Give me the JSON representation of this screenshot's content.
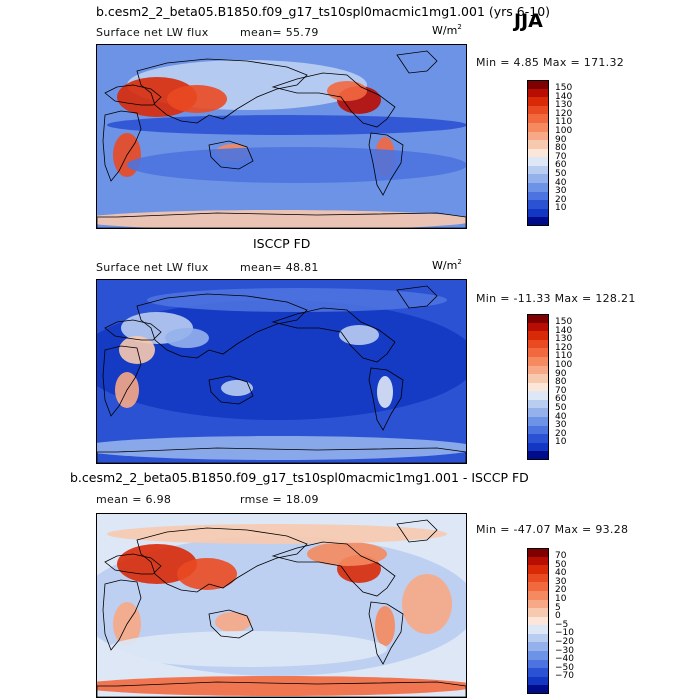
{
  "season": "JJA",
  "units": {
    "base": "W/m",
    "exp": "2"
  },
  "panels": [
    {
      "title": "b.cesm2_2_beta05.B1850.f09_g17_ts10spl0macmic1mg1.001 (yrs 6-10)",
      "variable": "Surface net LW flux",
      "mean": "mean=  55.79",
      "minmax": "Min =   4.85 Max = 171.32",
      "colorbar": {
        "labels": [
          "150",
          "140",
          "130",
          "120",
          "110",
          "100",
          "90",
          "80",
          "70",
          "60",
          "50",
          "40",
          "30",
          "20",
          "10"
        ],
        "colors": [
          "#7f0000",
          "#b80d02",
          "#d92a08",
          "#ea4a21",
          "#f2683f",
          "#f5895f",
          "#f7a886",
          "#f7c9af",
          "#fbe6d9",
          "#dde7f6",
          "#b9cdf1",
          "#94b1ec",
          "#6d93e6",
          "#4c73df",
          "#2c52d4",
          "#1337c2",
          "#000c8a"
        ]
      },
      "palette": "warm"
    },
    {
      "title": "ISCCP FD",
      "variable": "Surface net LW flux",
      "mean": "mean=  48.81",
      "minmax": "Min = -11.33 Max = 128.21",
      "colorbar": {
        "labels": [
          "150",
          "140",
          "130",
          "120",
          "110",
          "100",
          "90",
          "80",
          "70",
          "60",
          "50",
          "40",
          "30",
          "20",
          "10"
        ],
        "colors": [
          "#7f0000",
          "#b80d02",
          "#d92a08",
          "#ea4a21",
          "#f2683f",
          "#f5895f",
          "#f7a886",
          "#f7c9af",
          "#fbe6d9",
          "#dde7f6",
          "#b9cdf1",
          "#94b1ec",
          "#6d93e6",
          "#4c73df",
          "#2c52d4",
          "#1337c2",
          "#000c8a"
        ]
      },
      "palette": "cool"
    },
    {
      "title": "b.cesm2_2_beta05.B1850.f09_g17_ts10spl0macmic1mg1.001 - ISCCP FD",
      "mean": "mean =   6.98",
      "rmse": "rmse =  18.09",
      "minmax": "Min = -47.07 Max =  93.28",
      "colorbar": {
        "labels": [
          "70",
          "50",
          "40",
          "30",
          "20",
          "10",
          "5",
          "0",
          "−5",
          "−10",
          "−20",
          "−30",
          "−40",
          "−50",
          "−70"
        ],
        "colors": [
          "#7f0000",
          "#b80d02",
          "#d92a08",
          "#ea4a21",
          "#f2683f",
          "#f5895f",
          "#f7a886",
          "#f7c9af",
          "#fbe6d9",
          "#dde7f6",
          "#b9cdf1",
          "#94b1ec",
          "#6d93e6",
          "#4c73df",
          "#2c52d4",
          "#1337c2",
          "#000c8a"
        ]
      },
      "palette": "diff"
    }
  ]
}
